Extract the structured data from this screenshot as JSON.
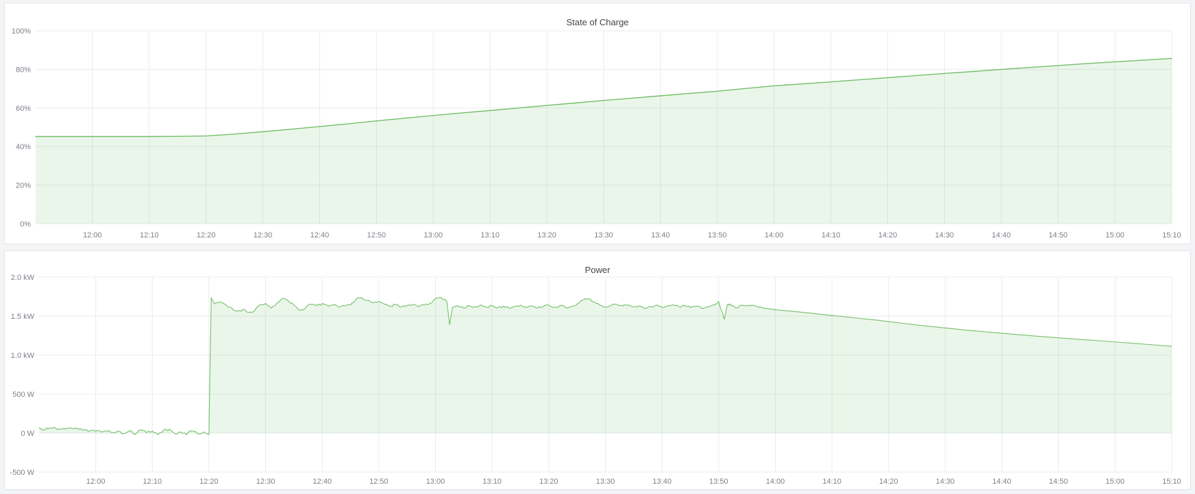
{
  "page": {
    "background": "#f3f4f6",
    "panel_background": "#ffffff",
    "panel_border": "#e3e4e8"
  },
  "chart_data": [
    {
      "type": "area",
      "title": "State of Charge",
      "legend": "none",
      "grid": true,
      "line_color": "#73bf69",
      "fill_color": "rgba(115,191,105,0.14)",
      "grid_color": "#e9ebee",
      "tick_color": "#7b8087",
      "x_range_minutes": [
        0,
        200
      ],
      "y_range": [
        0,
        100
      ],
      "fill_to": 0,
      "noise_regions": [],
      "y_ticks": [
        {
          "v": 100,
          "label": "100%"
        },
        {
          "v": 80,
          "label": "80%"
        },
        {
          "v": 60,
          "label": "60%"
        },
        {
          "v": 40,
          "label": "40%"
        },
        {
          "v": 20,
          "label": "20%"
        },
        {
          "v": 0,
          "label": "0%"
        }
      ],
      "x_ticks": [
        {
          "t": 10,
          "label": "12:00"
        },
        {
          "t": 20,
          "label": "12:10"
        },
        {
          "t": 30,
          "label": "12:20"
        },
        {
          "t": 40,
          "label": "12:30"
        },
        {
          "t": 50,
          "label": "12:40"
        },
        {
          "t": 60,
          "label": "12:50"
        },
        {
          "t": 70,
          "label": "13:00"
        },
        {
          "t": 80,
          "label": "13:10"
        },
        {
          "t": 90,
          "label": "13:20"
        },
        {
          "t": 100,
          "label": "13:30"
        },
        {
          "t": 110,
          "label": "13:40"
        },
        {
          "t": 120,
          "label": "13:50"
        },
        {
          "t": 130,
          "label": "14:00"
        },
        {
          "t": 140,
          "label": "14:10"
        },
        {
          "t": 150,
          "label": "14:20"
        },
        {
          "t": 160,
          "label": "14:30"
        },
        {
          "t": 170,
          "label": "14:40"
        },
        {
          "t": 180,
          "label": "14:50"
        },
        {
          "t": 190,
          "label": "15:00"
        },
        {
          "t": 200,
          "label": "15:10"
        }
      ],
      "series": [
        {
          "name": "State of Charge",
          "points": [
            [
              0,
              45.2
            ],
            [
              5,
              45.2
            ],
            [
              10,
              45.2
            ],
            [
              15,
              45.2
            ],
            [
              20,
              45.2
            ],
            [
              25,
              45.3
            ],
            [
              30,
              45.5
            ],
            [
              32,
              45.9
            ],
            [
              35,
              46.5
            ],
            [
              40,
              47.7
            ],
            [
              45,
              49.0
            ],
            [
              50,
              50.4
            ],
            [
              55,
              51.8
            ],
            [
              60,
              53.3
            ],
            [
              65,
              54.7
            ],
            [
              70,
              56.1
            ],
            [
              75,
              57.4
            ],
            [
              80,
              58.7
            ],
            [
              85,
              60.0
            ],
            [
              90,
              61.3
            ],
            [
              95,
              62.6
            ],
            [
              100,
              63.9
            ],
            [
              105,
              65.1
            ],
            [
              110,
              66.3
            ],
            [
              115,
              67.5
            ],
            [
              120,
              68.7
            ],
            [
              125,
              70.1
            ],
            [
              130,
              71.5
            ],
            [
              135,
              72.5
            ],
            [
              140,
              73.5
            ],
            [
              145,
              74.6
            ],
            [
              150,
              75.7
            ],
            [
              155,
              76.8
            ],
            [
              160,
              77.9
            ],
            [
              165,
              78.9
            ],
            [
              170,
              80.0
            ],
            [
              175,
              81.0
            ],
            [
              180,
              82.0
            ],
            [
              185,
              83.0
            ],
            [
              190,
              83.9
            ],
            [
              195,
              84.8
            ],
            [
              200,
              85.7
            ]
          ]
        }
      ]
    },
    {
      "type": "area",
      "title": "Power",
      "legend": "none",
      "grid": true,
      "line_color": "#73bf69",
      "fill_color": "rgba(115,191,105,0.14)",
      "grid_color": "#e9ebee",
      "tick_color": "#7b8087",
      "x_range_minutes": [
        0,
        200
      ],
      "y_range": [
        -500,
        2000
      ],
      "fill_to": 0,
      "noise_regions": [
        {
          "from": 0,
          "to": 30,
          "amp": 16
        },
        {
          "from": 31,
          "to": 128,
          "amp": 14
        }
      ],
      "y_ticks": [
        {
          "v": 2000,
          "label": "2.0 kW"
        },
        {
          "v": 1500,
          "label": "1.5 kW"
        },
        {
          "v": 1000,
          "label": "1.0 kW"
        },
        {
          "v": 500,
          "label": "500 W"
        },
        {
          "v": 0,
          "label": "0 W"
        },
        {
          "v": -500,
          "label": "-500 W"
        }
      ],
      "x_ticks": [
        {
          "t": 10,
          "label": "12:00"
        },
        {
          "t": 20,
          "label": "12:10"
        },
        {
          "t": 30,
          "label": "12:20"
        },
        {
          "t": 40,
          "label": "12:30"
        },
        {
          "t": 50,
          "label": "12:40"
        },
        {
          "t": 60,
          "label": "12:50"
        },
        {
          "t": 70,
          "label": "13:00"
        },
        {
          "t": 80,
          "label": "13:10"
        },
        {
          "t": 90,
          "label": "13:20"
        },
        {
          "t": 100,
          "label": "13:30"
        },
        {
          "t": 110,
          "label": "13:40"
        },
        {
          "t": 120,
          "label": "13:50"
        },
        {
          "t": 130,
          "label": "14:00"
        },
        {
          "t": 140,
          "label": "14:10"
        },
        {
          "t": 150,
          "label": "14:20"
        },
        {
          "t": 160,
          "label": "14:30"
        },
        {
          "t": 170,
          "label": "14:40"
        },
        {
          "t": 180,
          "label": "14:50"
        },
        {
          "t": 190,
          "label": "15:00"
        },
        {
          "t": 200,
          "label": "15:10"
        }
      ],
      "series": [
        {
          "name": "Power",
          "points": [
            [
              0,
              68
            ],
            [
              1,
              45
            ],
            [
              2,
              66
            ],
            [
              3,
              58
            ],
            [
              4,
              52
            ],
            [
              5,
              64
            ],
            [
              6,
              55
            ],
            [
              7,
              48
            ],
            [
              8,
              40
            ],
            [
              9,
              30
            ],
            [
              10,
              22
            ],
            [
              11,
              15
            ],
            [
              12,
              22
            ],
            [
              13,
              6
            ],
            [
              14,
              26
            ],
            [
              15,
              -6
            ],
            [
              16,
              30
            ],
            [
              17,
              -16
            ],
            [
              18,
              40
            ],
            [
              19,
              4
            ],
            [
              20,
              28
            ],
            [
              21,
              -18
            ],
            [
              22,
              36
            ],
            [
              23,
              50
            ],
            [
              24,
              -8
            ],
            [
              25,
              16
            ],
            [
              26,
              -22
            ],
            [
              27,
              30
            ],
            [
              28,
              -10
            ],
            [
              29,
              14
            ],
            [
              30,
              -18
            ],
            [
              30.4,
              1735
            ],
            [
              31,
              1655
            ],
            [
              32,
              1685
            ],
            [
              33,
              1645
            ],
            [
              34,
              1605
            ],
            [
              35,
              1565
            ],
            [
              36,
              1585
            ],
            [
              37,
              1548
            ],
            [
              38,
              1565
            ],
            [
              39,
              1645
            ],
            [
              40,
              1662
            ],
            [
              41,
              1602
            ],
            [
              42,
              1668
            ],
            [
              43,
              1728
            ],
            [
              44,
              1698
            ],
            [
              45,
              1642
            ],
            [
              46,
              1572
            ],
            [
              47,
              1602
            ],
            [
              48,
              1652
            ],
            [
              49,
              1632
            ],
            [
              50,
              1662
            ],
            [
              51,
              1628
            ],
            [
              52,
              1648
            ],
            [
              53,
              1612
            ],
            [
              54,
              1632
            ],
            [
              55,
              1642
            ],
            [
              56,
              1718
            ],
            [
              57,
              1735
            ],
            [
              58,
              1702
            ],
            [
              59,
              1672
            ],
            [
              60,
              1688
            ],
            [
              61,
              1652
            ],
            [
              62,
              1628
            ],
            [
              63,
              1648
            ],
            [
              64,
              1618
            ],
            [
              65,
              1638
            ],
            [
              66,
              1652
            ],
            [
              67,
              1622
            ],
            [
              68,
              1642
            ],
            [
              69,
              1662
            ],
            [
              70,
              1722
            ],
            [
              71,
              1740
            ],
            [
              72,
              1685
            ],
            [
              72.5,
              1390
            ],
            [
              73,
              1612
            ],
            [
              74,
              1632
            ],
            [
              75,
              1602
            ],
            [
              76,
              1632
            ],
            [
              77,
              1618
            ],
            [
              78,
              1645
            ],
            [
              79,
              1615
            ],
            [
              80,
              1635
            ],
            [
              81,
              1608
            ],
            [
              82,
              1628
            ],
            [
              83,
              1602
            ],
            [
              84,
              1622
            ],
            [
              85,
              1642
            ],
            [
              86,
              1612
            ],
            [
              87,
              1632
            ],
            [
              88,
              1602
            ],
            [
              89,
              1622
            ],
            [
              90,
              1642
            ],
            [
              91,
              1615
            ],
            [
              92,
              1635
            ],
            [
              93,
              1608
            ],
            [
              94,
              1622
            ],
            [
              95,
              1655
            ],
            [
              96,
              1702
            ],
            [
              97,
              1722
            ],
            [
              98,
              1682
            ],
            [
              99,
              1642
            ],
            [
              100,
              1618
            ],
            [
              101,
              1638
            ],
            [
              102,
              1652
            ],
            [
              103,
              1628
            ],
            [
              104,
              1645
            ],
            [
              105,
              1618
            ],
            [
              106,
              1632
            ],
            [
              107,
              1602
            ],
            [
              108,
              1622
            ],
            [
              109,
              1642
            ],
            [
              110,
              1612
            ],
            [
              111,
              1632
            ],
            [
              112,
              1645
            ],
            [
              113,
              1618
            ],
            [
              114,
              1638
            ],
            [
              115,
              1608
            ],
            [
              116,
              1628
            ],
            [
              117,
              1598
            ],
            [
              118,
              1618
            ],
            [
              119,
              1642
            ],
            [
              120,
              1688
            ],
            [
              121,
              1460
            ],
            [
              121.5,
              1640
            ],
            [
              122,
              1655
            ],
            [
              123,
              1605
            ],
            [
              124,
              1640
            ],
            [
              125,
              1632
            ],
            [
              126,
              1642
            ],
            [
              127,
              1612
            ],
            [
              128,
              1602
            ],
            [
              130,
              1582
            ],
            [
              133,
              1562
            ],
            [
              136,
              1540
            ],
            [
              140,
              1508
            ],
            [
              144,
              1478
            ],
            [
              148,
              1448
            ],
            [
              152,
              1412
            ],
            [
              156,
              1378
            ],
            [
              160,
              1348
            ],
            [
              164,
              1318
            ],
            [
              168,
              1292
            ],
            [
              172,
              1268
            ],
            [
              176,
              1244
            ],
            [
              180,
              1222
            ],
            [
              184,
              1200
            ],
            [
              188,
              1180
            ],
            [
              192,
              1158
            ],
            [
              196,
              1136
            ],
            [
              200,
              1112
            ]
          ]
        }
      ]
    }
  ]
}
